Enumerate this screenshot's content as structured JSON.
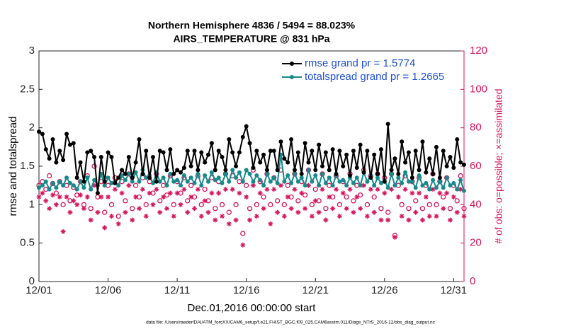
{
  "chart_data": {
    "type": "line",
    "title": "Northern Hemisphere 4836 / 5494 = 88.023%",
    "subtitle": "AIRS_TEMPERATURE @ 831 hPa",
    "xlabel": "Dec.01,2016 00:00:00 start",
    "ylabel": "rmse and totalspread",
    "y2label": "# of obs: o=possible; ×=assimilated",
    "footnote": "data file: /Users/raeder/DAI/ATM_forcXX/CAM6_setup/f.e21.FHIST_BGC.f09_025.CAM6assim.011/Diags_NTrS_2016-12/obs_diag_output.nc",
    "xlim": [
      0,
      30.75
    ],
    "ylim": [
      0,
      3
    ],
    "y2lim": [
      0,
      120
    ],
    "xticks": [
      {
        "value": 0,
        "label": "12/01"
      },
      {
        "value": 5,
        "label": "12/06"
      },
      {
        "value": 10,
        "label": "12/11"
      },
      {
        "value": 15,
        "label": "12/16"
      },
      {
        "value": 20,
        "label": "12/21"
      },
      {
        "value": 25,
        "label": "12/26"
      },
      {
        "value": 30,
        "label": "12/31"
      }
    ],
    "yticks": [
      0,
      0.5,
      1,
      1.5,
      2,
      2.5,
      3
    ],
    "y2ticks": [
      0,
      20,
      40,
      60,
      80,
      100,
      120
    ],
    "y2color": "#d6145c",
    "legend_color": "#1f4fd8",
    "legend": "top-right",
    "x": [
      0,
      0.25,
      0.5,
      0.75,
      1,
      1.25,
      1.5,
      1.75,
      2,
      2.25,
      2.5,
      2.75,
      3,
      3.25,
      3.5,
      3.75,
      4,
      4.25,
      4.5,
      4.75,
      5,
      5.25,
      5.5,
      5.75,
      6,
      6.25,
      6.5,
      6.75,
      7,
      7.25,
      7.5,
      7.75,
      8,
      8.25,
      8.5,
      8.75,
      9,
      9.25,
      9.5,
      9.75,
      10,
      10.25,
      10.5,
      10.75,
      11,
      11.25,
      11.5,
      11.75,
      12,
      12.25,
      12.5,
      12.75,
      13,
      13.25,
      13.5,
      13.75,
      14,
      14.25,
      14.5,
      14.75,
      15,
      15.25,
      15.5,
      15.75,
      16,
      16.25,
      16.5,
      16.75,
      17,
      17.25,
      17.5,
      17.75,
      18,
      18.25,
      18.5,
      18.75,
      19,
      19.25,
      19.5,
      19.75,
      20,
      20.25,
      20.5,
      20.75,
      21,
      21.25,
      21.5,
      21.75,
      22,
      22.25,
      22.5,
      22.75,
      23,
      23.25,
      23.5,
      23.75,
      24,
      24.25,
      24.5,
      24.75,
      25,
      25.25,
      25.5,
      25.75,
      26,
      26.25,
      26.5,
      26.75,
      27,
      27.25,
      27.5,
      27.75,
      28,
      28.25,
      28.5,
      28.75,
      29,
      29.25,
      29.5,
      29.75,
      30,
      30.25,
      30.5,
      30.75
    ],
    "series": [
      {
        "name": "rmse grand pr = 1.5774",
        "color": "#000000",
        "marker": "dot",
        "line": true,
        "values": [
          1.95,
          1.92,
          1.72,
          1.6,
          1.85,
          1.55,
          1.7,
          1.58,
          1.92,
          1.78,
          1.8,
          1.35,
          1.55,
          1.3,
          1.68,
          1.7,
          1.62,
          1.15,
          1.62,
          1.3,
          1.68,
          1.62,
          1.28,
          1.35,
          1.45,
          1.4,
          1.62,
          1.35,
          1.55,
          1.85,
          1.4,
          1.7,
          1.35,
          1.62,
          1.3,
          1.7,
          1.68,
          1.45,
          1.72,
          1.4,
          1.45,
          1.42,
          1.48,
          1.7,
          1.5,
          1.7,
          1.45,
          1.68,
          1.55,
          1.65,
          1.8,
          1.45,
          1.7,
          1.62,
          1.45,
          1.85,
          1.68,
          1.5,
          1.68,
          1.88,
          2.02,
          1.8,
          1.48,
          1.7,
          1.55,
          1.65,
          1.45,
          1.7,
          1.7,
          1.45,
          1.82,
          1.6,
          1.55,
          1.85,
          1.45,
          1.68,
          1.4,
          1.8,
          1.55,
          1.7,
          1.45,
          1.78,
          1.5,
          1.68,
          1.45,
          1.72,
          1.4,
          1.7,
          1.5,
          1.65,
          1.38,
          1.7,
          1.48,
          1.78,
          1.42,
          1.7,
          1.35,
          1.65,
          1.4,
          1.72,
          1.3,
          2.05,
          1.45,
          1.6,
          1.4,
          1.82,
          1.55,
          1.68,
          1.35,
          1.7,
          1.45,
          1.82,
          1.42,
          1.6,
          1.4,
          1.75,
          1.35,
          1.7,
          1.5,
          1.62,
          1.48,
          1.85,
          1.55,
          1.52
        ]
      },
      {
        "name": "totalspread grand pr = 1.2665",
        "color": "#168a8a",
        "marker": "dot",
        "line": true,
        "values": [
          1.22,
          1.25,
          1.3,
          1.2,
          1.28,
          1.22,
          1.3,
          1.25,
          1.35,
          1.28,
          1.25,
          1.2,
          1.3,
          1.22,
          1.35,
          1.2,
          1.32,
          1.25,
          1.4,
          1.25,
          1.35,
          1.28,
          1.3,
          1.25,
          1.38,
          1.32,
          1.4,
          1.3,
          1.42,
          1.3,
          1.45,
          1.35,
          1.38,
          1.28,
          1.42,
          1.3,
          1.35,
          1.25,
          1.4,
          1.3,
          1.32,
          1.25,
          1.38,
          1.3,
          1.35,
          1.28,
          1.4,
          1.25,
          1.38,
          1.3,
          1.42,
          1.32,
          1.35,
          1.28,
          1.4,
          1.3,
          1.45,
          1.35,
          1.42,
          1.3,
          1.45,
          1.4,
          1.3,
          1.38,
          1.32,
          1.25,
          1.4,
          1.3,
          1.35,
          1.28,
          1.65,
          1.3,
          1.38,
          1.28,
          1.4,
          1.3,
          1.35,
          1.25,
          1.45,
          1.3,
          1.38,
          1.25,
          1.4,
          1.28,
          1.35,
          1.25,
          1.38,
          1.3,
          1.32,
          1.25,
          1.35,
          1.28,
          1.35,
          1.25,
          1.42,
          1.3,
          1.38,
          1.25,
          1.35,
          1.28,
          1.32,
          1.22,
          1.4,
          1.25,
          1.35,
          1.28,
          1.42,
          1.3,
          1.3,
          1.22,
          1.38,
          1.25,
          1.28,
          1.2,
          1.32,
          1.22,
          1.3,
          1.22,
          1.35,
          1.25,
          1.28,
          1.2,
          1.32,
          1.18
        ]
      },
      {
        "color": "#d6145c",
        "marker": "circle-open",
        "line": false,
        "axis": "y2",
        "values": [
          50,
          52,
          48,
          55,
          51,
          46,
          52,
          40,
          50,
          42,
          49,
          45,
          52,
          40,
          55,
          38,
          60,
          44,
          52,
          36,
          50,
          40,
          54,
          34,
          52,
          42,
          56,
          38,
          50,
          44,
          54,
          40,
          52,
          46,
          56,
          42,
          50,
          45,
          55,
          40,
          52,
          46,
          54,
          42,
          50,
          44,
          55,
          40,
          48,
          42,
          54,
          38,
          52,
          40,
          56,
          36,
          55,
          40,
          52,
          25,
          50,
          38,
          58,
          40,
          52,
          44,
          56,
          40,
          54,
          42,
          58,
          40,
          50,
          44,
          56,
          42,
          52,
          45,
          58,
          40,
          48,
          42,
          56,
          38,
          50,
          44,
          55,
          40,
          52,
          44,
          56,
          42,
          50,
          45,
          58,
          40,
          55,
          44,
          56,
          38,
          54,
          36,
          56,
          24,
          50,
          40,
          55,
          38,
          52,
          42,
          54,
          38,
          50,
          40,
          56,
          40,
          52,
          44,
          54,
          38,
          50,
          42,
          55,
          38
        ]
      },
      {
        "color": "#d6145c",
        "marker": "asterisk",
        "line": false,
        "axis": "y2",
        "values": [
          44,
          46,
          42,
          38,
          45,
          40,
          44,
          26,
          44,
          36,
          42,
          40,
          45,
          38,
          44,
          32,
          50,
          36,
          44,
          28,
          44,
          34,
          48,
          30,
          46,
          36,
          50,
          32,
          44,
          38,
          48,
          34,
          46,
          40,
          48,
          36,
          44,
          38,
          46,
          34,
          46,
          40,
          48,
          36,
          44,
          38,
          48,
          34,
          42,
          36,
          46,
          32,
          46,
          34,
          48,
          30,
          48,
          32,
          46,
          19,
          44,
          32,
          50,
          34,
          46,
          38,
          48,
          30,
          48,
          36,
          50,
          34,
          44,
          38,
          48,
          36,
          46,
          38,
          50,
          34,
          42,
          36,
          48,
          32,
          44,
          38,
          48,
          34,
          46,
          38,
          48,
          36,
          44,
          38,
          50,
          34,
          48,
          36,
          48,
          32,
          46,
          32,
          48,
          23,
          44,
          34,
          48,
          32,
          46,
          36,
          46,
          32,
          44,
          34,
          48,
          34,
          46,
          38,
          46,
          32,
          44,
          36,
          48,
          34
        ]
      }
    ]
  }
}
